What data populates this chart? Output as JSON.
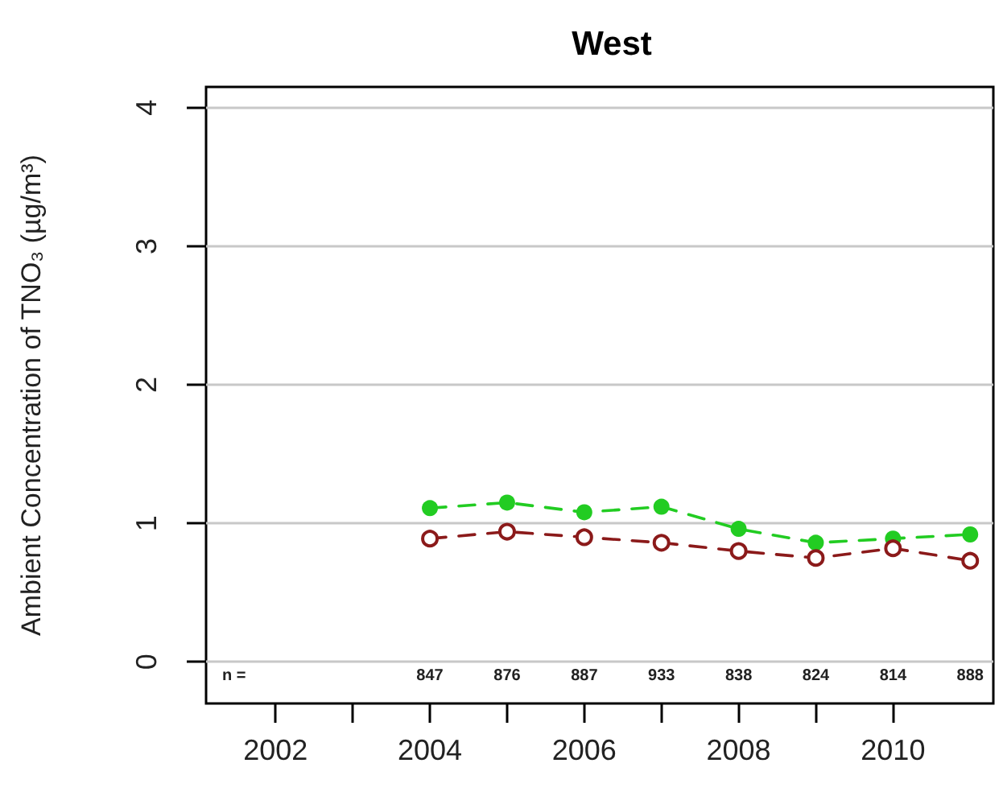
{
  "chart_data": {
    "type": "line",
    "title": "West",
    "ylabel": "Ambient Concentration of TNO₃ (µg/m³)",
    "x": [
      2004,
      2005,
      2006,
      2007,
      2008,
      2009,
      2010,
      2011
    ],
    "series": [
      {
        "color": "#22cc22",
        "values": [
          1.11,
          1.15,
          1.08,
          1.12,
          0.96,
          0.86,
          0.89,
          0.92
        ]
      },
      {
        "color": "#8b1a1a",
        "values": [
          0.89,
          0.94,
          0.9,
          0.86,
          0.8,
          0.75,
          0.82,
          0.73
        ]
      }
    ],
    "xlim": [
      2001.1,
      2011.3
    ],
    "xticks": [
      2002,
      {
        "value": 2003,
        "label": null
      },
      2004,
      {
        "value": 2005,
        "label": null
      },
      2006,
      {
        "value": 2007,
        "label": null
      },
      2008,
      {
        "value": 2009,
        "label": null
      },
      2010
    ],
    "ylim": [
      -0.3,
      4.15
    ],
    "yticks": [
      0,
      1,
      2,
      3,
      4
    ],
    "grid": "y",
    "marker": "circle",
    "line_style": "dashed",
    "annotations": [
      "n =",
      "847",
      "876",
      "887",
      "933",
      "838",
      "824",
      "814",
      "888"
    ]
  }
}
